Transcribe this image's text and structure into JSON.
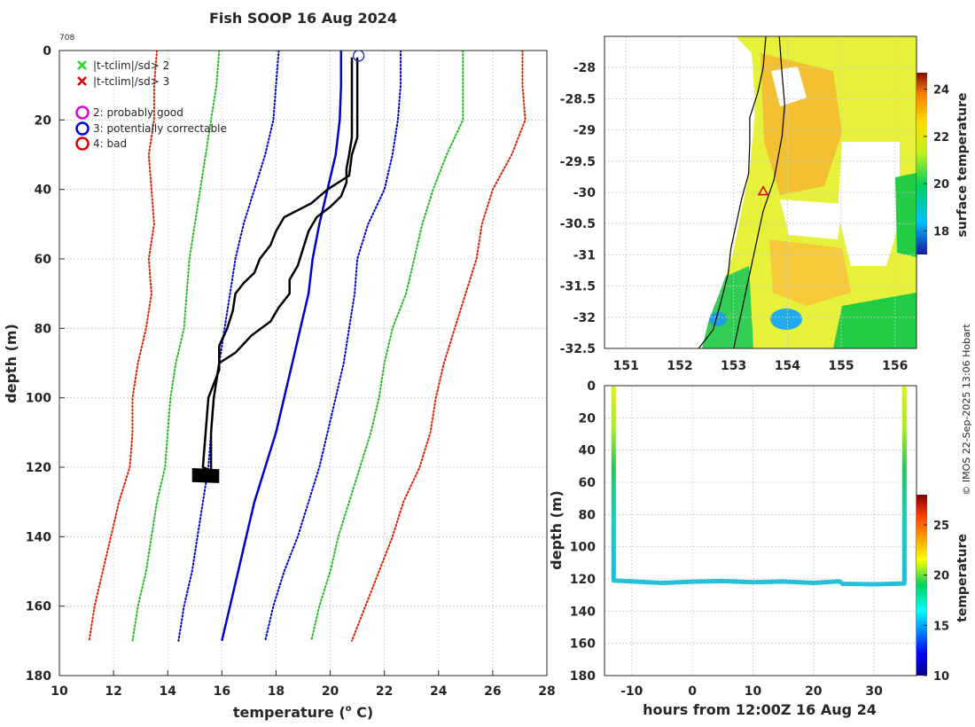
{
  "chart_data": [
    {
      "type": "line",
      "id": "profile",
      "title": "Fish SOOP 16 Aug 2024",
      "profile_id": "708",
      "xlabel": "temperature (°C)",
      "xlabel_main": "temperature (",
      "xlabel_unit": "o",
      "xlabel_end": " C)",
      "ylabel": "depth (m)",
      "xlim": [
        10,
        28
      ],
      "ylim": [
        180,
        0
      ],
      "xticks": [
        10,
        12,
        14,
        16,
        18,
        20,
        22,
        24,
        26,
        28
      ],
      "yticks": [
        0,
        20,
        40,
        60,
        80,
        100,
        120,
        140,
        160,
        180
      ],
      "legend": [
        {
          "label": "|t-tclim|/sd> 2",
          "marker": "x",
          "color": "#22dd22"
        },
        {
          "label": "|t-tclim|/sd> 3",
          "marker": "x",
          "color": "#dd0000"
        },
        {
          "label": "2: probably good",
          "marker": "o",
          "color": "#dd00dd"
        },
        {
          "label": "3: potentially correctable",
          "marker": "o",
          "color": "#0000dd"
        },
        {
          "label": "4: bad",
          "marker": "o",
          "color": "#dd0000"
        }
      ],
      "depths": [
        0,
        10,
        20,
        30,
        40,
        50,
        60,
        70,
        80,
        90,
        100,
        110,
        120,
        130,
        140,
        150,
        160,
        170
      ],
      "series": [
        {
          "name": "climatology mean",
          "style": "solid",
          "color": "#0000cc",
          "values": [
            20.4,
            20.4,
            20.35,
            20.2,
            19.9,
            19.6,
            19.35,
            19.2,
            18.9,
            18.6,
            18.3,
            18.0,
            17.6,
            17.2,
            16.9,
            16.6,
            16.3,
            16.0
          ]
        },
        {
          "name": "mean - 1 sd",
          "style": "dotted",
          "color": "#0000cc",
          "values": [
            18.1,
            18.0,
            17.9,
            17.6,
            17.2,
            16.8,
            16.5,
            16.3,
            16.1,
            15.9,
            15.7,
            15.6,
            15.5,
            15.3,
            15.1,
            14.9,
            14.6,
            14.4
          ]
        },
        {
          "name": "mean + 1 sd",
          "style": "dotted",
          "color": "#0000cc",
          "values": [
            22.6,
            22.6,
            22.5,
            22.3,
            22.0,
            21.4,
            21.0,
            20.9,
            20.7,
            20.5,
            20.2,
            19.9,
            19.6,
            19.2,
            18.8,
            18.3,
            17.9,
            17.6
          ]
        },
        {
          "name": "mean - 2 sd",
          "style": "dotted",
          "color": "#22bb22",
          "values": [
            15.9,
            15.8,
            15.6,
            15.4,
            15.2,
            15.0,
            14.8,
            14.7,
            14.6,
            14.3,
            14.1,
            14.0,
            13.9,
            13.6,
            13.4,
            13.2,
            12.9,
            12.7
          ]
        },
        {
          "name": "mean + 2 sd",
          "style": "dotted",
          "color": "#22bb22",
          "values": [
            24.9,
            24.9,
            24.9,
            24.3,
            23.8,
            23.4,
            23.1,
            22.8,
            22.3,
            22.0,
            21.8,
            21.5,
            21.1,
            20.7,
            20.3,
            20.0,
            19.6,
            19.3
          ]
        },
        {
          "name": "mean - 3 sd",
          "style": "dotted",
          "color": "#dd2200",
          "values": [
            13.6,
            13.5,
            13.5,
            13.3,
            13.4,
            13.5,
            13.3,
            13.4,
            13.2,
            12.9,
            12.7,
            12.7,
            12.6,
            12.2,
            11.9,
            11.6,
            11.3,
            11.1
          ]
        },
        {
          "name": "mean + 3 sd",
          "style": "dotted",
          "color": "#dd2200",
          "values": [
            27.1,
            27.1,
            27.2,
            26.7,
            26.0,
            25.6,
            25.4,
            25.0,
            24.6,
            24.2,
            23.9,
            23.7,
            23.3,
            22.7,
            22.3,
            21.8,
            21.3,
            20.8
          ]
        }
      ],
      "observed_profiles": [
        {
          "name": "down cast",
          "color": "#000000",
          "depth": [
            2,
            10,
            20,
            25,
            30,
            36,
            40,
            44,
            48,
            52,
            56,
            60,
            64,
            67,
            70,
            75,
            80,
            85,
            88,
            92,
            96,
            100,
            110,
            120,
            121
          ],
          "temp": [
            21.0,
            21.0,
            21.0,
            21.0,
            20.8,
            20.7,
            19.9,
            19.3,
            18.3,
            18.0,
            17.8,
            17.4,
            17.2,
            16.8,
            16.5,
            16.4,
            16.2,
            15.9,
            15.9,
            15.9,
            15.7,
            15.5,
            15.4,
            15.3,
            15.6
          ]
        },
        {
          "name": "up cast",
          "color": "#000000",
          "depth": [
            121,
            110,
            100,
            90,
            87,
            82,
            78,
            74,
            70,
            66,
            62,
            57,
            52,
            48,
            45,
            42,
            38,
            34,
            30,
            25,
            20,
            10,
            2
          ],
          "temp": [
            15.6,
            15.6,
            15.7,
            15.9,
            16.5,
            17.1,
            17.8,
            18.1,
            18.5,
            18.5,
            18.8,
            19.0,
            19.2,
            19.5,
            20.0,
            20.4,
            20.6,
            20.6,
            20.7,
            20.8,
            20.8,
            20.8,
            20.8
          ]
        }
      ],
      "bottom_scribble": {
        "depth": [
          120.5,
          124
        ],
        "temp": [
          14.9,
          15.9
        ]
      },
      "flag_marker": {
        "temp": 21.05,
        "depth": 1.5,
        "color": "#2222aa"
      }
    },
    {
      "type": "heatmap",
      "id": "sst-map",
      "colorbar_label": "surface temperature",
      "colorbar_ticks": [
        18,
        20,
        22,
        24
      ],
      "colorbar_range": [
        17,
        24.7
      ],
      "xlim": [
        150.6,
        156.4
      ],
      "ylim": [
        -32.5,
        -27.5
      ],
      "xticks": [
        151,
        152,
        153,
        154,
        155,
        156
      ],
      "yticks": [
        -28,
        -28.5,
        -29,
        -29.5,
        -30,
        -30.5,
        -31,
        -31.5,
        -32,
        -32.5
      ],
      "xticklabels": [
        "151",
        "152",
        "153",
        "154",
        "155",
        "156"
      ],
      "yticklabels": [
        "-28",
        "-28.5",
        "-29",
        "-29.5",
        "-30",
        "-30.5",
        "-31",
        "-31.5",
        "-32",
        "-32.5"
      ],
      "coastline": {
        "lon": [
          152.35,
          152.62,
          152.75,
          152.9,
          152.95,
          153.05,
          153.15,
          153.28,
          153.3,
          153.3,
          153.45,
          153.55,
          153.6
        ],
        "lat": [
          -32.5,
          -32.2,
          -31.8,
          -31.3,
          -30.9,
          -30.5,
          -30.1,
          -29.7,
          -29.2,
          -28.8,
          -28.4,
          -28.0,
          -27.5
        ]
      },
      "ship_track": {
        "lon": [
          153.0,
          153.2,
          153.4,
          153.55,
          153.75,
          153.9,
          153.95,
          153.9,
          153.85
        ],
        "lat": [
          -32.5,
          -31.7,
          -30.9,
          -30.3,
          -29.8,
          -29.1,
          -28.6,
          -28.1,
          -27.5
        ]
      },
      "station": {
        "lon": 153.55,
        "lat": -29.98,
        "color": "#dd0000"
      }
    },
    {
      "type": "scatter",
      "id": "depth-time",
      "xlabel": "hours from 12:00Z 16 Aug 24",
      "ylabel": "depth (m)",
      "colorbar_label": "temperature",
      "colorbar_ticks": [
        10,
        15,
        20,
        25
      ],
      "colorbar_range": [
        10,
        28
      ],
      "xlim": [
        -14.5,
        37
      ],
      "ylim": [
        180,
        0
      ],
      "xticks": [
        -10,
        0,
        10,
        20,
        30
      ],
      "yticks": [
        0,
        20,
        40,
        60,
        80,
        100,
        120,
        140,
        160,
        180
      ],
      "descents": [
        {
          "hour": -13,
          "max_depth": 121
        },
        {
          "hour": 35,
          "max_depth": 123
        }
      ],
      "bottom_trace": {
        "hours": [
          -13,
          -5,
          0,
          5,
          10,
          15,
          20,
          24.3,
          24.8,
          30,
          35
        ],
        "depths": [
          121,
          122.5,
          121.7,
          121.3,
          122.1,
          121.6,
          122.5,
          121.5,
          123.0,
          123.3,
          122.8
        ]
      },
      "surface_temp": 21.0,
      "bottom_temp": 15.8
    }
  ],
  "watermark": "© IMOS 22-Sep-2025 13:06 Hobart"
}
